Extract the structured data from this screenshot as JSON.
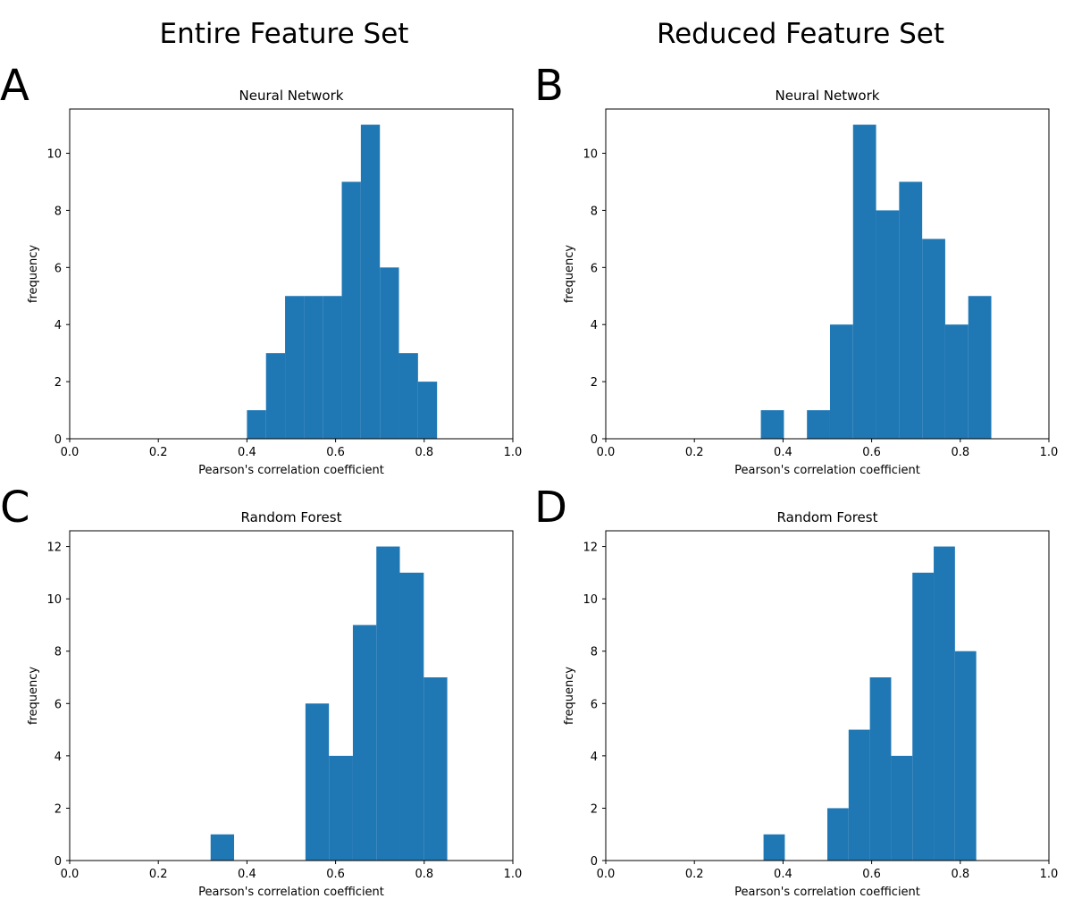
{
  "figure": {
    "left_title": "Entire Feature Set",
    "right_title": "Reduced Feature Set",
    "bar_color": "#1f77b4"
  },
  "chart_data": [
    {
      "type": "bar",
      "panel_label": "A",
      "title": "Neural Network",
      "xlabel": "Pearson's correlation coefficient",
      "ylabel": "frequency",
      "xlim": [
        0.0,
        1.0
      ],
      "ylim": [
        0,
        11.55
      ],
      "xticks": [
        "0.0",
        "0.2",
        "0.4",
        "0.6",
        "0.8",
        "1.0"
      ],
      "yticks": [
        "0",
        "2",
        "4",
        "6",
        "8",
        "10"
      ],
      "bins": [
        {
          "x0": 0.4,
          "x1": 0.443,
          "count": 1
        },
        {
          "x0": 0.443,
          "x1": 0.486,
          "count": 3
        },
        {
          "x0": 0.486,
          "x1": 0.529,
          "count": 5
        },
        {
          "x0": 0.529,
          "x1": 0.571,
          "count": 5
        },
        {
          "x0": 0.571,
          "x1": 0.614,
          "count": 5
        },
        {
          "x0": 0.614,
          "x1": 0.657,
          "count": 9
        },
        {
          "x0": 0.657,
          "x1": 0.7,
          "count": 11
        },
        {
          "x0": 0.7,
          "x1": 0.743,
          "count": 6
        },
        {
          "x0": 0.743,
          "x1": 0.786,
          "count": 3
        },
        {
          "x0": 0.786,
          "x1": 0.829,
          "count": 2
        }
      ]
    },
    {
      "type": "bar",
      "panel_label": "B",
      "title": "Neural Network",
      "xlabel": "Pearson's correlation coefficient",
      "ylabel": "frequency",
      "xlim": [
        0.0,
        1.0
      ],
      "ylim": [
        0,
        11.55
      ],
      "xticks": [
        "0.0",
        "0.2",
        "0.4",
        "0.6",
        "0.8",
        "1.0"
      ],
      "yticks": [
        "0",
        "2",
        "4",
        "6",
        "8",
        "10"
      ],
      "bins": [
        {
          "x0": 0.35,
          "x1": 0.402,
          "count": 1
        },
        {
          "x0": 0.402,
          "x1": 0.454,
          "count": 0
        },
        {
          "x0": 0.454,
          "x1": 0.506,
          "count": 1
        },
        {
          "x0": 0.506,
          "x1": 0.558,
          "count": 4
        },
        {
          "x0": 0.558,
          "x1": 0.61,
          "count": 11
        },
        {
          "x0": 0.61,
          "x1": 0.662,
          "count": 8
        },
        {
          "x0": 0.662,
          "x1": 0.714,
          "count": 9
        },
        {
          "x0": 0.714,
          "x1": 0.766,
          "count": 7
        },
        {
          "x0": 0.766,
          "x1": 0.818,
          "count": 4
        },
        {
          "x0": 0.818,
          "x1": 0.87,
          "count": 5
        }
      ]
    },
    {
      "type": "bar",
      "panel_label": "C",
      "title": "Random Forest",
      "xlabel": "Pearson's correlation coefficient",
      "ylabel": "frequency",
      "xlim": [
        0.0,
        1.0
      ],
      "ylim": [
        0,
        12.6
      ],
      "xticks": [
        "0.0",
        "0.2",
        "0.4",
        "0.6",
        "0.8",
        "1.0"
      ],
      "yticks": [
        "0",
        "2",
        "4",
        "6",
        "8",
        "10",
        "12"
      ],
      "bins": [
        {
          "x0": 0.318,
          "x1": 0.371,
          "count": 1
        },
        {
          "x0": 0.371,
          "x1": 0.425,
          "count": 0
        },
        {
          "x0": 0.425,
          "x1": 0.478,
          "count": 0
        },
        {
          "x0": 0.478,
          "x1": 0.532,
          "count": 0
        },
        {
          "x0": 0.532,
          "x1": 0.585,
          "count": 6
        },
        {
          "x0": 0.585,
          "x1": 0.639,
          "count": 4
        },
        {
          "x0": 0.639,
          "x1": 0.692,
          "count": 9
        },
        {
          "x0": 0.692,
          "x1": 0.745,
          "count": 12
        },
        {
          "x0": 0.745,
          "x1": 0.799,
          "count": 11
        },
        {
          "x0": 0.799,
          "x1": 0.852,
          "count": 7
        }
      ]
    },
    {
      "type": "bar",
      "panel_label": "D",
      "title": "Random Forest",
      "xlabel": "Pearson's correlation coefficient",
      "ylabel": "frequency",
      "xlim": [
        0.0,
        1.0
      ],
      "ylim": [
        0,
        12.6
      ],
      "xticks": [
        "0.0",
        "0.2",
        "0.4",
        "0.6",
        "0.8",
        "1.0"
      ],
      "yticks": [
        "0",
        "2",
        "4",
        "6",
        "8",
        "10",
        "12"
      ],
      "bins": [
        {
          "x0": 0.356,
          "x1": 0.404,
          "count": 1
        },
        {
          "x0": 0.404,
          "x1": 0.452,
          "count": 0
        },
        {
          "x0": 0.452,
          "x1": 0.5,
          "count": 0
        },
        {
          "x0": 0.5,
          "x1": 0.548,
          "count": 2
        },
        {
          "x0": 0.548,
          "x1": 0.596,
          "count": 5
        },
        {
          "x0": 0.596,
          "x1": 0.644,
          "count": 7
        },
        {
          "x0": 0.644,
          "x1": 0.692,
          "count": 4
        },
        {
          "x0": 0.692,
          "x1": 0.74,
          "count": 11
        },
        {
          "x0": 0.74,
          "x1": 0.788,
          "count": 12
        },
        {
          "x0": 0.788,
          "x1": 0.836,
          "count": 8
        }
      ]
    }
  ]
}
